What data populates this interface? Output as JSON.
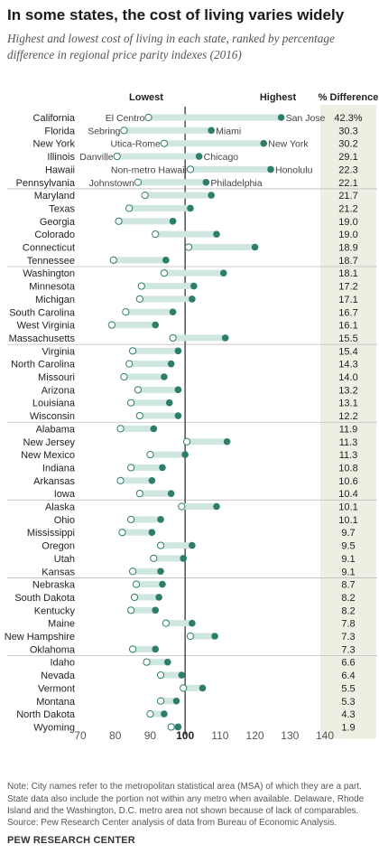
{
  "title": "In some states, the cost of living varies widely",
  "subtitle": "Highest and lowest cost of living in each state, ranked by percentage difference in regional price parity indexes (2016)",
  "chart_data": {
    "type": "dot-range",
    "header_low": "Lowest",
    "header_high": "Highest",
    "header_diff": "% Difference",
    "x_ticks": [
      "70",
      "80",
      "90",
      "100",
      "110",
      "120",
      "130",
      "140"
    ],
    "xlim": [
      70,
      140
    ],
    "reference_line": 100,
    "colors": {
      "high": "#2e7d6b",
      "low_fill": "#ffffff",
      "low_stroke": "#2e7d6b",
      "bar": "#cfe6e1",
      "diff_band": "#efeee3",
      "baseline": "#444444"
    },
    "rows": [
      {
        "state": "California",
        "low": 89.5,
        "high": 127.5,
        "diff": "42.3%",
        "low_label": "El Centro",
        "high_label": "San Jose"
      },
      {
        "state": "Florida",
        "low": 82.5,
        "high": 107.5,
        "diff": "30.3",
        "low_label": "Sebring",
        "high_label": "Miami"
      },
      {
        "state": "New York",
        "low": 94.0,
        "high": 122.5,
        "diff": "30.2",
        "low_label": "Utica-Rome",
        "high_label": "New York"
      },
      {
        "state": "Illinois",
        "low": 80.5,
        "high": 104.0,
        "diff": "29.1",
        "low_label": "Danville",
        "high_label": "Chicago"
      },
      {
        "state": "Hawaii",
        "low": 101.5,
        "high": 124.5,
        "diff": "22.3",
        "low_label": "Non-metro Hawaii",
        "high_label": "Honolulu"
      },
      {
        "state": "Pennsylvania",
        "low": 86.5,
        "high": 106.0,
        "diff": "22.1",
        "low_label": "Johnstown",
        "high_label": "Philadelphia"
      },
      {
        "state": "Maryland",
        "low": 88.5,
        "high": 107.5,
        "diff": "21.7"
      },
      {
        "state": "Texas",
        "low": 84.0,
        "high": 101.5,
        "diff": "21.2"
      },
      {
        "state": "Georgia",
        "low": 81.0,
        "high": 96.5,
        "diff": "19.0"
      },
      {
        "state": "Colorado",
        "low": 91.5,
        "high": 109.0,
        "diff": "19.0"
      },
      {
        "state": "Connecticut",
        "low": 101.0,
        "high": 120.0,
        "diff": "18.9"
      },
      {
        "state": "Tennessee",
        "low": 79.5,
        "high": 94.5,
        "diff": "18.7"
      },
      {
        "state": "Washington",
        "low": 94.0,
        "high": 111.0,
        "diff": "18.1"
      },
      {
        "state": "Minnesota",
        "low": 87.5,
        "high": 102.5,
        "diff": "17.2"
      },
      {
        "state": "Michigan",
        "low": 87.0,
        "high": 102.0,
        "diff": "17.1"
      },
      {
        "state": "South Carolina",
        "low": 83.0,
        "high": 96.5,
        "diff": "16.7"
      },
      {
        "state": "West Virginia",
        "low": 79.0,
        "high": 91.5,
        "diff": "16.1"
      },
      {
        "state": "Massachusetts",
        "low": 96.5,
        "high": 111.5,
        "diff": "15.5"
      },
      {
        "state": "Virginia",
        "low": 85.0,
        "high": 98.0,
        "diff": "15.4"
      },
      {
        "state": "North Carolina",
        "low": 84.0,
        "high": 96.0,
        "diff": "14.3"
      },
      {
        "state": "Missouri",
        "low": 82.5,
        "high": 94.0,
        "diff": "14.0"
      },
      {
        "state": "Arizona",
        "low": 86.5,
        "high": 98.0,
        "diff": "13.2"
      },
      {
        "state": "Louisiana",
        "low": 84.5,
        "high": 95.5,
        "diff": "13.1"
      },
      {
        "state": "Wisconsin",
        "low": 87.0,
        "high": 98.0,
        "diff": "12.2"
      },
      {
        "state": "Alabama",
        "low": 81.5,
        "high": 91.0,
        "diff": "11.9"
      },
      {
        "state": "New Jersey",
        "low": 100.5,
        "high": 112.0,
        "diff": "11.3"
      },
      {
        "state": "New Mexico",
        "low": 90.0,
        "high": 100.0,
        "diff": "11.3"
      },
      {
        "state": "Indiana",
        "low": 84.5,
        "high": 93.5,
        "diff": "10.8"
      },
      {
        "state": "Arkansas",
        "low": 81.5,
        "high": 90.5,
        "diff": "10.6"
      },
      {
        "state": "Iowa",
        "low": 87.0,
        "high": 96.0,
        "diff": "10.4"
      },
      {
        "state": "Alaska",
        "low": 99.0,
        "high": 109.0,
        "diff": "10.1"
      },
      {
        "state": "Ohio",
        "low": 84.5,
        "high": 93.0,
        "diff": "10.1"
      },
      {
        "state": "Mississippi",
        "low": 82.0,
        "high": 90.5,
        "diff": "9.7"
      },
      {
        "state": "Oregon",
        "low": 93.0,
        "high": 102.0,
        "diff": "9.5"
      },
      {
        "state": "Utah",
        "low": 91.0,
        "high": 99.5,
        "diff": "9.1"
      },
      {
        "state": "Kansas",
        "low": 85.0,
        "high": 93.0,
        "diff": "9.1"
      },
      {
        "state": "Nebraska",
        "low": 86.0,
        "high": 93.5,
        "diff": "8.7"
      },
      {
        "state": "South Dakota",
        "low": 85.5,
        "high": 92.5,
        "diff": "8.2"
      },
      {
        "state": "Kentucky",
        "low": 84.5,
        "high": 91.5,
        "diff": "8.2"
      },
      {
        "state": "Maine",
        "low": 94.5,
        "high": 102.0,
        "diff": "7.8"
      },
      {
        "state": "New Hampshire",
        "low": 101.5,
        "high": 108.5,
        "diff": "7.3"
      },
      {
        "state": "Oklahoma",
        "low": 85.0,
        "high": 91.5,
        "diff": "7.3"
      },
      {
        "state": "Idaho",
        "low": 89.0,
        "high": 95.0,
        "diff": "6.6"
      },
      {
        "state": "Nevada",
        "low": 93.0,
        "high": 99.0,
        "diff": "6.4"
      },
      {
        "state": "Vermont",
        "low": 99.5,
        "high": 105.0,
        "diff": "5.5"
      },
      {
        "state": "Montana",
        "low": 93.0,
        "high": 97.5,
        "diff": "5.3"
      },
      {
        "state": "North Dakota",
        "low": 90.0,
        "high": 94.0,
        "diff": "4.3"
      },
      {
        "state": "Wyoming",
        "low": 96.0,
        "high": 98.0,
        "diff": "1.9"
      }
    ]
  },
  "note": "Note: City names refer to the metropolitan statistical area (MSA) of which they are a part. State data also include the portion not within any metro when available. Delaware, Rhode Island and the Washington, D.C. metro area not shown because of lack of comparables.",
  "source": "Source: Pew Research Center analysis of data from Bureau of Economic Analysis.",
  "brand": "PEW RESEARCH CENTER"
}
